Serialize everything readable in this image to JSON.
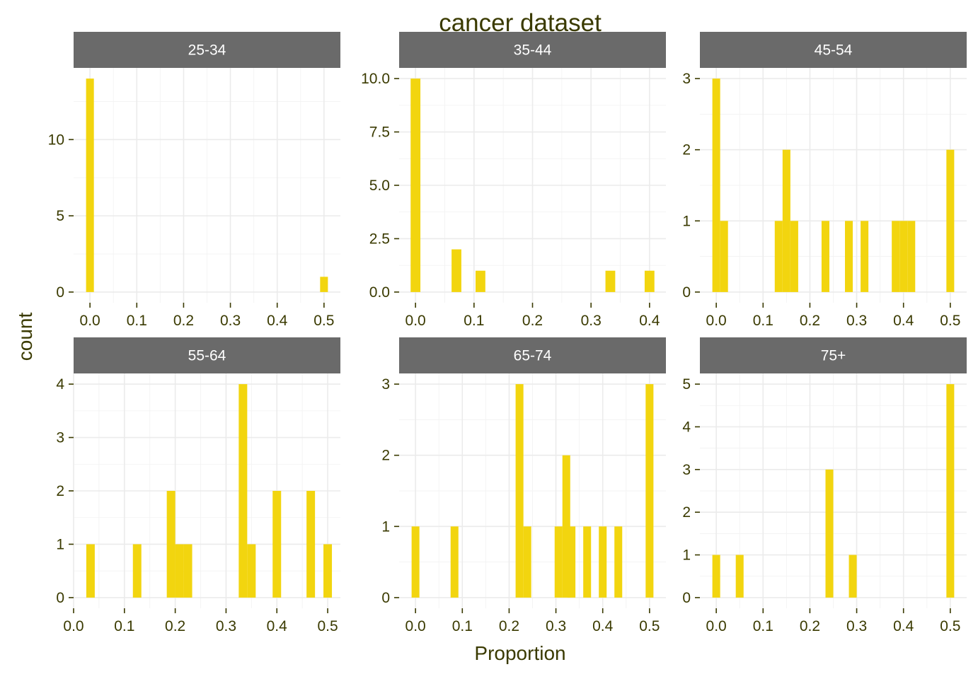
{
  "colors": {
    "bar": "#f2d50f",
    "strip": "#6a6a6a",
    "text": "#3a3a00",
    "grid": "#ebebeb"
  },
  "chart_data": {
    "type": "bar",
    "title": "cancer dataset",
    "xlabel": "Proportion",
    "ylabel": "count",
    "grid": true,
    "legend": "none",
    "bin_width": 0.0167,
    "panels": [
      {
        "label": "25-34",
        "xlim": [
          -0.035,
          0.535
        ],
        "ylim": [
          -0.7,
          14.7
        ],
        "xticks": [
          {
            "v": 0,
            "label": "0.0"
          },
          {
            "v": 0.1,
            "label": "0.1"
          },
          {
            "v": 0.2,
            "label": "0.2"
          },
          {
            "v": 0.3,
            "label": "0.3"
          },
          {
            "v": 0.4,
            "label": "0.4"
          },
          {
            "v": 0.5,
            "label": "0.5"
          }
        ],
        "yticks": [
          {
            "v": 0,
            "label": "0"
          },
          {
            "v": 5,
            "label": "5"
          },
          {
            "v": 10,
            "label": "10"
          }
        ],
        "bars": [
          {
            "x": 0.0,
            "count": 14
          },
          {
            "x": 0.5,
            "count": 1
          }
        ]
      },
      {
        "label": "35-44",
        "xlim": [
          -0.028,
          0.428
        ],
        "ylim": [
          -0.5,
          10.5
        ],
        "xticks": [
          {
            "v": 0,
            "label": "0.0"
          },
          {
            "v": 0.1,
            "label": "0.1"
          },
          {
            "v": 0.2,
            "label": "0.2"
          },
          {
            "v": 0.3,
            "label": "0.3"
          },
          {
            "v": 0.4,
            "label": "0.4"
          }
        ],
        "yticks": [
          {
            "v": 0,
            "label": "0.0"
          },
          {
            "v": 2.5,
            "label": "2.5"
          },
          {
            "v": 5,
            "label": "5.0"
          },
          {
            "v": 7.5,
            "label": "7.5"
          },
          {
            "v": 10,
            "label": "10.0"
          }
        ],
        "bars": [
          {
            "x": 0.0,
            "count": 10
          },
          {
            "x": 0.07,
            "count": 2
          },
          {
            "x": 0.111,
            "count": 1
          },
          {
            "x": 0.333,
            "count": 1
          },
          {
            "x": 0.4,
            "count": 1
          }
        ]
      },
      {
        "label": "45-54",
        "xlim": [
          -0.035,
          0.535
        ],
        "ylim": [
          -0.15,
          3.15
        ],
        "xticks": [
          {
            "v": 0,
            "label": "0.0"
          },
          {
            "v": 0.1,
            "label": "0.1"
          },
          {
            "v": 0.2,
            "label": "0.2"
          },
          {
            "v": 0.3,
            "label": "0.3"
          },
          {
            "v": 0.4,
            "label": "0.4"
          },
          {
            "v": 0.5,
            "label": "0.5"
          }
        ],
        "yticks": [
          {
            "v": 0,
            "label": "0"
          },
          {
            "v": 1,
            "label": "1"
          },
          {
            "v": 2,
            "label": "2"
          },
          {
            "v": 3,
            "label": "3"
          }
        ],
        "bars": [
          {
            "x": 0.0,
            "count": 3
          },
          {
            "x": 0.0167,
            "count": 1
          },
          {
            "x": 0.1333,
            "count": 1
          },
          {
            "x": 0.15,
            "count": 2
          },
          {
            "x": 0.1667,
            "count": 1
          },
          {
            "x": 0.2333,
            "count": 1
          },
          {
            "x": 0.2833,
            "count": 1
          },
          {
            "x": 0.3167,
            "count": 1
          },
          {
            "x": 0.3833,
            "count": 1
          },
          {
            "x": 0.4,
            "count": 1
          },
          {
            "x": 0.4167,
            "count": 1
          },
          {
            "x": 0.5,
            "count": 2
          }
        ]
      },
      {
        "label": "55-64",
        "xlim": [
          0.0,
          0.525
        ],
        "ylim": [
          -0.2,
          4.2
        ],
        "xticks": [
          {
            "v": 0,
            "label": "0.0"
          },
          {
            "v": 0.1,
            "label": "0.1"
          },
          {
            "v": 0.2,
            "label": "0.2"
          },
          {
            "v": 0.3,
            "label": "0.3"
          },
          {
            "v": 0.4,
            "label": "0.4"
          },
          {
            "v": 0.5,
            "label": "0.5"
          }
        ],
        "yticks": [
          {
            "v": 0,
            "label": "0"
          },
          {
            "v": 1,
            "label": "1"
          },
          {
            "v": 2,
            "label": "2"
          },
          {
            "v": 3,
            "label": "3"
          },
          {
            "v": 4,
            "label": "4"
          }
        ],
        "bars": [
          {
            "x": 0.0333,
            "count": 1
          },
          {
            "x": 0.125,
            "count": 1
          },
          {
            "x": 0.1917,
            "count": 2
          },
          {
            "x": 0.2083,
            "count": 1
          },
          {
            "x": 0.225,
            "count": 1
          },
          {
            "x": 0.3333,
            "count": 4
          },
          {
            "x": 0.35,
            "count": 1
          },
          {
            "x": 0.4,
            "count": 2
          },
          {
            "x": 0.4667,
            "count": 2
          },
          {
            "x": 0.5,
            "count": 1
          }
        ]
      },
      {
        "label": "65-74",
        "xlim": [
          -0.035,
          0.535
        ],
        "ylim": [
          -0.15,
          3.15
        ],
        "xticks": [
          {
            "v": 0,
            "label": "0.0"
          },
          {
            "v": 0.1,
            "label": "0.1"
          },
          {
            "v": 0.2,
            "label": "0.2"
          },
          {
            "v": 0.3,
            "label": "0.3"
          },
          {
            "v": 0.4,
            "label": "0.4"
          },
          {
            "v": 0.5,
            "label": "0.5"
          }
        ],
        "yticks": [
          {
            "v": 0,
            "label": "0"
          },
          {
            "v": 1,
            "label": "1"
          },
          {
            "v": 2,
            "label": "2"
          },
          {
            "v": 3,
            "label": "3"
          }
        ],
        "bars": [
          {
            "x": 0.0,
            "count": 1
          },
          {
            "x": 0.0833,
            "count": 1
          },
          {
            "x": 0.2222,
            "count": 3
          },
          {
            "x": 0.2389,
            "count": 1
          },
          {
            "x": 0.3056,
            "count": 1
          },
          {
            "x": 0.3222,
            "count": 2
          },
          {
            "x": 0.3333,
            "count": 1
          },
          {
            "x": 0.3667,
            "count": 1
          },
          {
            "x": 0.4,
            "count": 1
          },
          {
            "x": 0.4333,
            "count": 1
          },
          {
            "x": 0.5,
            "count": 3
          }
        ]
      },
      {
        "label": "75+",
        "xlim": [
          -0.035,
          0.535
        ],
        "ylim": [
          -0.25,
          5.25
        ],
        "xticks": [
          {
            "v": 0,
            "label": "0.0"
          },
          {
            "v": 0.1,
            "label": "0.1"
          },
          {
            "v": 0.2,
            "label": "0.2"
          },
          {
            "v": 0.3,
            "label": "0.3"
          },
          {
            "v": 0.4,
            "label": "0.4"
          },
          {
            "v": 0.5,
            "label": "0.5"
          }
        ],
        "yticks": [
          {
            "v": 0,
            "label": "0"
          },
          {
            "v": 1,
            "label": "1"
          },
          {
            "v": 2,
            "label": "2"
          },
          {
            "v": 3,
            "label": "3"
          },
          {
            "v": 4,
            "label": "4"
          },
          {
            "v": 5,
            "label": "5"
          }
        ],
        "bars": [
          {
            "x": 0.0,
            "count": 1
          },
          {
            "x": 0.05,
            "count": 1
          },
          {
            "x": 0.2417,
            "count": 3
          },
          {
            "x": 0.2917,
            "count": 1
          },
          {
            "x": 0.5,
            "count": 5
          }
        ]
      }
    ]
  }
}
